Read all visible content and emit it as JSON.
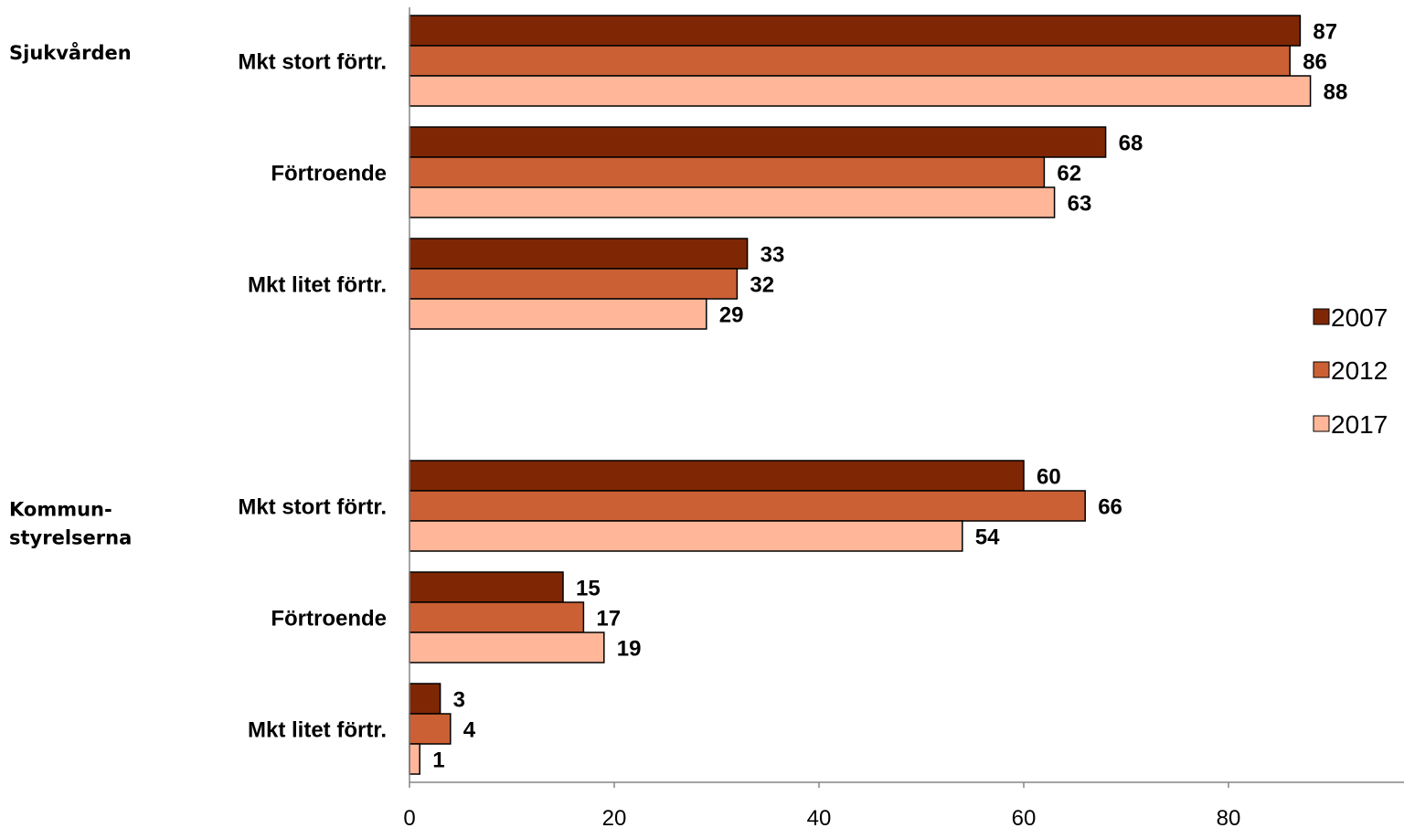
{
  "chart_data": {
    "type": "bar",
    "orientation": "horizontal",
    "groups": [
      {
        "label": "Sjukvården",
        "categories": [
          {
            "label": "Mkt stort förtr.",
            "values": [
              87,
              86,
              88
            ]
          },
          {
            "label": "Förtroende",
            "values": [
              68,
              62,
              63
            ]
          },
          {
            "label": "Mkt litet förtr.",
            "values": [
              33,
              32,
              29
            ]
          }
        ]
      },
      {
        "label": "Kommun-\nstyrelserna",
        "categories": [
          {
            "label": "Mkt stort förtr.",
            "values": [
              60,
              66,
              54
            ]
          },
          {
            "label": "Förtroende",
            "values": [
              15,
              17,
              19
            ]
          },
          {
            "label": "Mkt litet förtr.",
            "values": [
              3,
              4,
              1
            ]
          }
        ]
      }
    ],
    "series": [
      {
        "name": "2007",
        "color": "#7F2704"
      },
      {
        "name": "2012",
        "color": "#CB6034"
      },
      {
        "name": "2017",
        "color": "#FFB699"
      }
    ],
    "x_ticks": [
      0,
      20,
      40,
      60,
      80
    ],
    "xlim": [
      0,
      97
    ],
    "legend_position": "right",
    "grid": false,
    "title": "",
    "xlabel": "",
    "ylabel": ""
  }
}
